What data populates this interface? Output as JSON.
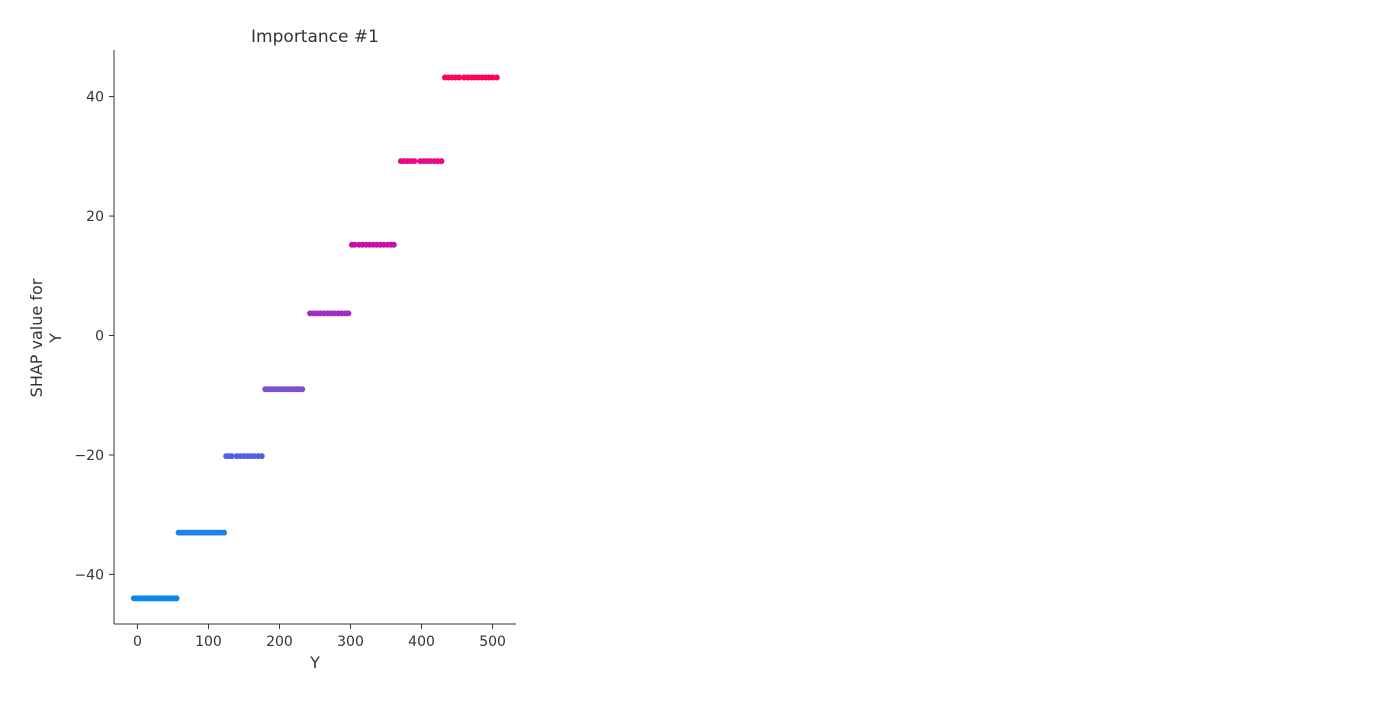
{
  "chart_data": {
    "type": "scatter",
    "title": "Importance #1",
    "xlabel": "Y",
    "ylabel_lines": [
      "SHAP value for",
      "Y"
    ],
    "xlim": [
      -33,
      533
    ],
    "ylim": [
      -48.3,
      47.8
    ],
    "xticks": [
      0,
      100,
      200,
      300,
      400,
      500
    ],
    "yticks": [
      -40,
      -20,
      0,
      20,
      40
    ],
    "xtick_labels": [
      "0",
      "100",
      "200",
      "300",
      "400",
      "500"
    ],
    "ytick_labels": [
      "−40",
      "−20",
      "0",
      "20",
      "40"
    ],
    "grid": false,
    "colors": {
      "low": "#0d87e8",
      "high": "#ff0050",
      "axis": "#333333"
    },
    "groups": [
      {
        "y": -44.0,
        "x": [
          -5,
          -2,
          1,
          4,
          7,
          10,
          13,
          16,
          19,
          22,
          25,
          28,
          31,
          34,
          37,
          40,
          43,
          46,
          49,
          52,
          55
        ],
        "color": "#0d87e8"
      },
      {
        "y": -33.0,
        "x": [
          58,
          62,
          66,
          70,
          74,
          78,
          82,
          86,
          90,
          94,
          98,
          102,
          106,
          110,
          114,
          118,
          122
        ],
        "color": "#1b84e8"
      },
      {
        "y": -20.2,
        "x": [
          125,
          129,
          133,
          140,
          145,
          150,
          155,
          160,
          165,
          170,
          175
        ],
        "color": "#5361e0"
      },
      {
        "y": -9.0,
        "x": [
          180,
          184,
          188,
          192,
          196,
          200,
          204,
          208,
          212,
          216,
          220,
          224,
          228,
          232
        ],
        "color": "#7b4ed6"
      },
      {
        "y": 3.7,
        "x": [
          243,
          248,
          253,
          258,
          263,
          268,
          273,
          278,
          283,
          288,
          293,
          297
        ],
        "color": "#a22bc4"
      },
      {
        "y": 15.2,
        "x": [
          302,
          306,
          312,
          317,
          322,
          327,
          332,
          337,
          342,
          347,
          352,
          357,
          361
        ],
        "color": "#c80fa8"
      },
      {
        "y": 29.2,
        "x": [
          371,
          375,
          380,
          385,
          390,
          398,
          403,
          408,
          413,
          418,
          423,
          428
        ],
        "color": "#e80888"
      },
      {
        "y": 43.2,
        "x": [
          433,
          438,
          443,
          448,
          453,
          460,
          465,
          470,
          475,
          480,
          485,
          490,
          495,
          500,
          506
        ],
        "color": "#ff0158"
      }
    ]
  }
}
